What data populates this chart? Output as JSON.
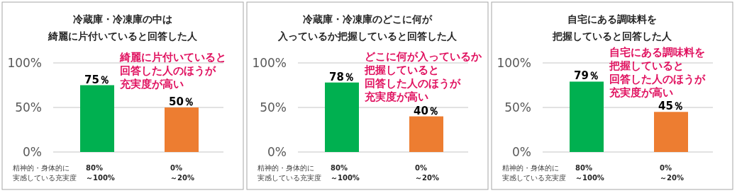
{
  "chart_data": [
    {
      "type": "bar",
      "title": "冷蔵庫・冷凍庫の中は綺麗に片付いていると回答した人",
      "xlabel": "精神的・身体的に実感している充実度",
      "categories": [
        "80%\n～100%",
        "0%\n～20%"
      ],
      "values": [
        75,
        50
      ],
      "colors": [
        "#00b050",
        "#ed7d31"
      ],
      "value_labels": [
        "75％",
        "50％"
      ],
      "ylim": [
        0,
        100
      ],
      "yticks": [
        {
          "value": 0,
          "label": "0%"
        },
        {
          "value": 50,
          "label": "50%"
        },
        {
          "value": 100,
          "label": "100%"
        }
      ],
      "grid": "y",
      "annotations": [
        "綺麗に片付いていると回答した人のほうが充実度が高い"
      ]
    },
    {
      "type": "bar",
      "title": "冷蔵庫・冷凍庫のどこに何が入っているか把握していると回答した人",
      "xlabel": "精神的・身体的に実感している充実度",
      "categories": [
        "80%\n～100%",
        "0%\n～20%"
      ],
      "values": [
        78,
        40
      ],
      "colors": [
        "#00b050",
        "#ed7d31"
      ],
      "value_labels": [
        "78％",
        "40％"
      ],
      "ylim": [
        0,
        100
      ],
      "yticks": [
        {
          "value": 0,
          "label": "0%"
        },
        {
          "value": 50,
          "label": "50%"
        },
        {
          "value": 100,
          "label": "100%"
        }
      ],
      "grid": "y",
      "annotations": [
        "どこに何が入っているか把握していると回答した人のほうが充実度が高い"
      ]
    },
    {
      "type": "bar",
      "title": "自宅にある調味料を把握していると回答した人",
      "xlabel": "精神的・身体的に実感している充実度",
      "categories": [
        "80%\n～100%",
        "0%\n～20%"
      ],
      "values": [
        79,
        45
      ],
      "colors": [
        "#00b050",
        "#ed7d31"
      ],
      "value_labels": [
        "79％",
        "45％"
      ],
      "ylim": [
        0,
        100
      ],
      "yticks": [
        {
          "value": 0,
          "label": "0%"
        },
        {
          "value": 50,
          "label": "50%"
        },
        {
          "value": 100,
          "label": "100%"
        }
      ],
      "grid": "y",
      "annotations": [
        "自宅にある調味料を把握していると回答した人のほうが充実度が高い"
      ]
    }
  ]
}
